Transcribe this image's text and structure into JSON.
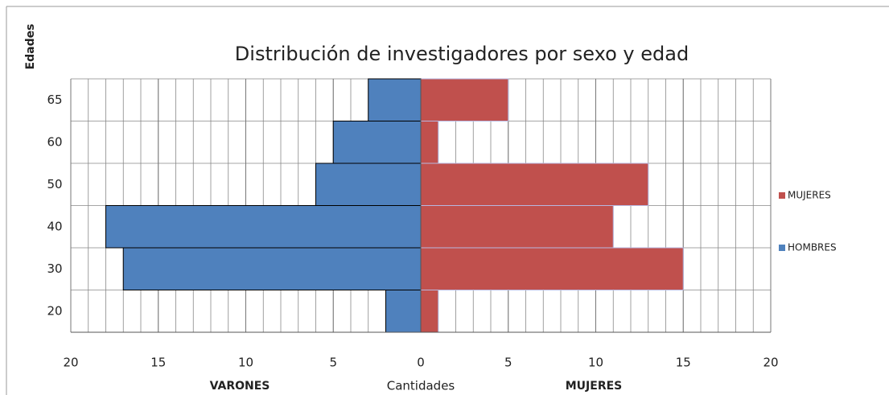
{
  "chart_data": {
    "type": "pyramid",
    "title": "Distribución de investigadores por sexo y edad",
    "y_label": "Edades",
    "x_label": "Cantidades",
    "x_label_left": "VARONES",
    "x_label_right": "MUJERES",
    "categories": [
      "20",
      "30",
      "40",
      "50",
      "60",
      "65"
    ],
    "series": [
      {
        "name": "MUJERES",
        "color": "#c0504d",
        "values": [
          1,
          15,
          11,
          13,
          1,
          5
        ]
      },
      {
        "name": "HOMBRES",
        "color": "#4f81bd",
        "values": [
          -2,
          -17,
          -18,
          -6,
          -5,
          -3
        ]
      }
    ],
    "xlim": [
      -20,
      20
    ],
    "xticks": [
      {
        "value": -20,
        "label": "20"
      },
      {
        "value": -15,
        "label": "15"
      },
      {
        "value": -10,
        "label": "10"
      },
      {
        "value": -5,
        "label": "5"
      },
      0,
      5,
      10,
      15,
      20
    ],
    "minor_grid": true,
    "legend": "right"
  }
}
